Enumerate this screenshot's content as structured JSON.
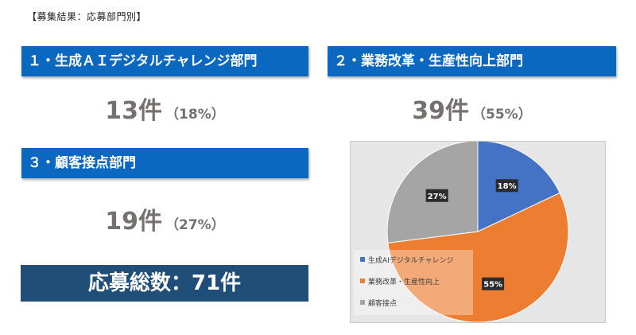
{
  "page_title": "【募集結果：応募部門別】",
  "categories": [
    {
      "banner": "１・生成ＡＩデジタルチャレンジ部門",
      "count": "13件",
      "percent": "（18%）"
    },
    {
      "banner": "２・業務改革・生産性向上部門",
      "count": "39件",
      "percent": "（55%）"
    },
    {
      "banner": "３・顧客接点部門",
      "count": "19件",
      "percent": "（27%）"
    }
  ],
  "total_label": "応募総数：71件",
  "colors": {
    "banner": "#0a68c0",
    "total_bg": "#1f4e79",
    "count_text": "#767171",
    "chart_bg": "#e7e6e6"
  },
  "chart_data": {
    "type": "pie",
    "legend_position": "left-overlay",
    "slices": [
      {
        "name": "生成AIデジタルチャレンジ",
        "value": 18,
        "label": "18%",
        "color": "#4472c4"
      },
      {
        "name": "業務改革・生産性向上",
        "value": 55,
        "label": "55%",
        "color": "#ed7d31"
      },
      {
        "name": "顧客接点",
        "value": 27,
        "label": "27%",
        "color": "#a5a5a5"
      }
    ]
  }
}
